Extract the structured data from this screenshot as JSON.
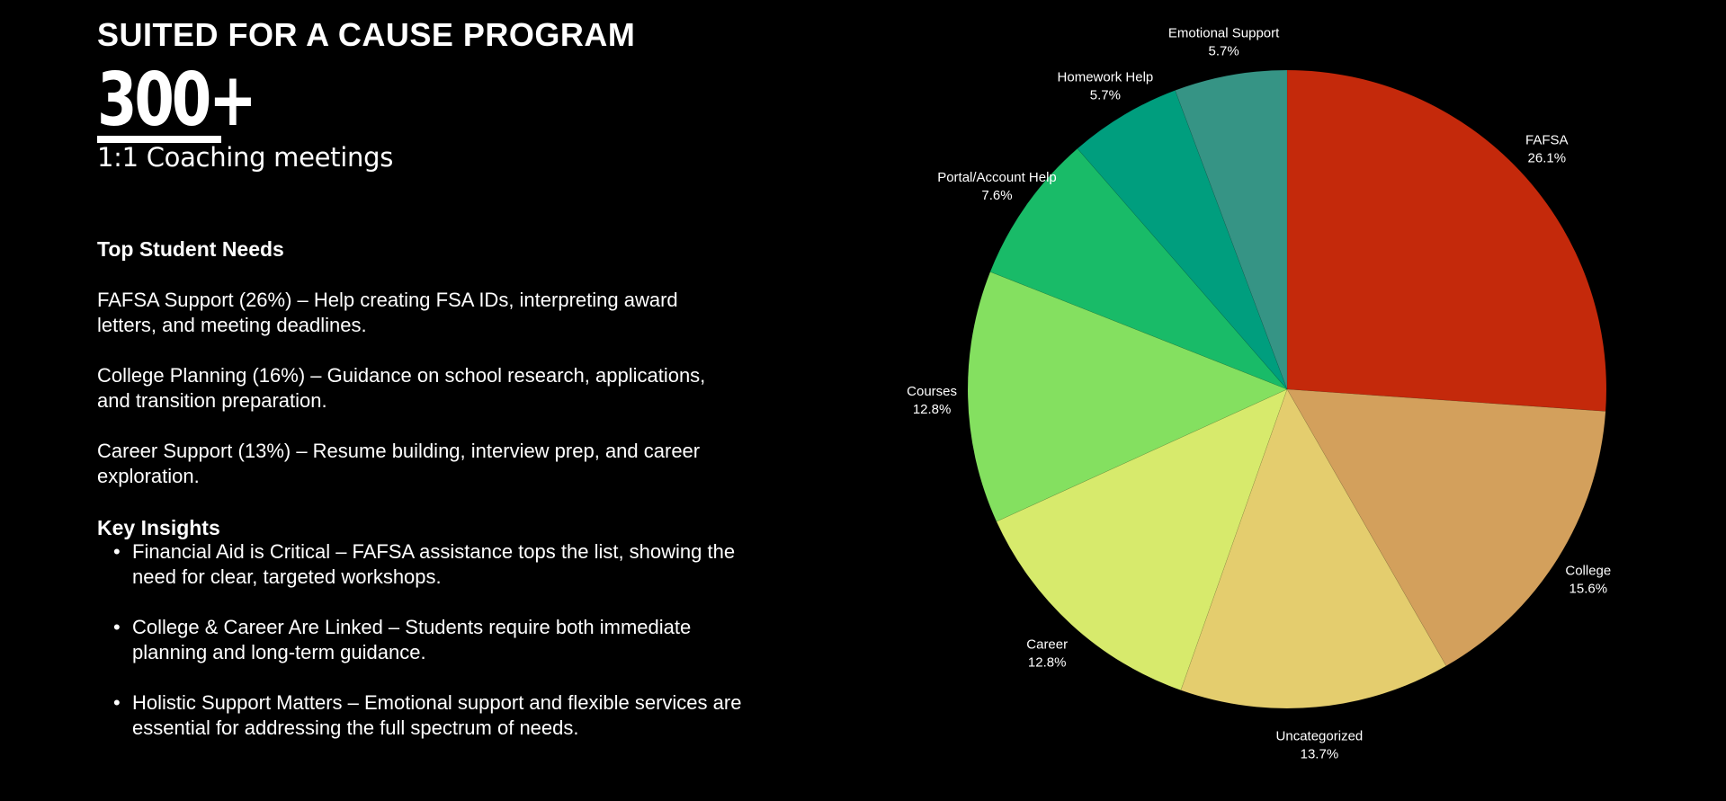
{
  "header": {
    "title": "SUITED FOR A CAUSE PROGRAM",
    "stat_value": "300+",
    "stat_label": "1:1 Coaching meetings"
  },
  "needs": {
    "heading": "Top Student Needs",
    "items": [
      "FAFSA Support (26%) – Help creating FSA IDs, interpreting award letters, and meeting deadlines.",
      "College Planning (16%) – Guidance on school research, applications, and transition preparation.",
      "Career Support (13%) – Resume building, interview prep, and career exploration."
    ]
  },
  "insights": {
    "heading": "Key Insights",
    "items": [
      "Financial Aid is Critical – FAFSA assistance tops the list, showing the need for clear, targeted workshops.",
      "College & Career Are Linked – Students require both immediate planning and long-term guidance.",
      "Holistic Support Matters – Emotional support and flexible services are essential for addressing the full spectrum of needs."
    ]
  },
  "chart_data": {
    "type": "pie",
    "title": "",
    "start": "12 o'clock, clockwise",
    "slices": [
      {
        "label": "FAFSA",
        "value": 26.1,
        "pct_label": "26.1%",
        "color": "#c4290b"
      },
      {
        "label": "College",
        "value": 15.6,
        "pct_label": "15.6%",
        "color": "#d3a05c"
      },
      {
        "label": "Uncategorized",
        "value": 13.7,
        "pct_label": "13.7%",
        "color": "#e4cd6e"
      },
      {
        "label": "Career",
        "value": 12.8,
        "pct_label": "12.8%",
        "color": "#d7ea6c"
      },
      {
        "label": "Courses",
        "value": 12.8,
        "pct_label": "12.8%",
        "color": "#84e060"
      },
      {
        "label": "Portal/Account Help",
        "value": 7.6,
        "pct_label": "7.6%",
        "color": "#19bb68"
      },
      {
        "label": "Homework Help",
        "value": 5.7,
        "pct_label": "5.7%",
        "color": "#009e7e"
      },
      {
        "label": "Emotional Support",
        "value": 5.7,
        "pct_label": "5.7%",
        "color": "#369485"
      }
    ]
  }
}
